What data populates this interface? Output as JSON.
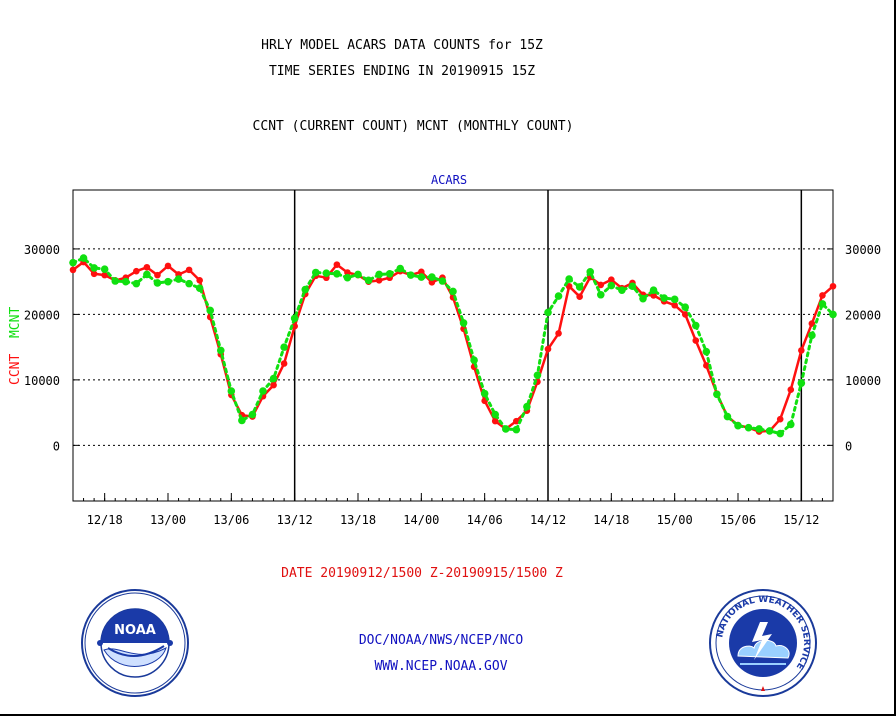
{
  "header": {
    "title_line1": "HRLY MODEL ACARS DATA COUNTS for 15Z",
    "title_line2": "TIME SERIES ENDING IN 20190915 15Z",
    "subtitle": "CCNT (CURRENT COUNT) MCNT (MONTHLY COUNT)"
  },
  "footer": {
    "date_range": "DATE 20190912/1500 Z-20190915/1500 Z",
    "org": "DOC/NOAA/NWS/NCEP/NCO",
    "url": "WWW.NCEP.NOAA.GOV",
    "noaa_logo_text": "NOAA",
    "nws_logo_text": "NATIONAL WEATHER SERVICE"
  },
  "colors": {
    "ccnt": "#ff1010",
    "mcnt": "#10e010",
    "text_blue": "#1010c0",
    "text_red": "#e01010"
  },
  "chart_data": {
    "type": "line",
    "title": "ACARS",
    "ylabel_ccnt": "CCNT",
    "ylabel_mcnt": "MCNT",
    "x_hours": [
      0,
      1,
      2,
      3,
      4,
      5,
      6,
      7,
      8,
      9,
      10,
      11,
      12,
      13,
      14,
      15,
      16,
      17,
      18,
      19,
      20,
      21,
      22,
      23,
      24,
      25,
      26,
      27,
      28,
      29,
      30,
      31,
      32,
      33,
      34,
      35,
      36,
      37,
      38,
      39,
      40,
      41,
      42,
      43,
      44,
      45,
      46,
      47,
      48,
      49,
      50,
      51,
      52,
      53,
      54,
      55,
      56,
      57,
      58,
      59,
      60,
      61,
      62,
      63,
      64,
      65,
      66,
      67,
      68,
      69,
      70,
      71,
      72
    ],
    "x_start": "20190912/1500 Z",
    "xlim_hours": [
      0,
      72
    ],
    "xticks": [
      {
        "h": 3,
        "label": "12/18"
      },
      {
        "h": 9,
        "label": "13/00"
      },
      {
        "h": 15,
        "label": "13/06"
      },
      {
        "h": 21,
        "label": "13/12"
      },
      {
        "h": 27,
        "label": "13/18"
      },
      {
        "h": 33,
        "label": "14/00"
      },
      {
        "h": 39,
        "label": "14/06"
      },
      {
        "h": 45,
        "label": "14/12"
      },
      {
        "h": 51,
        "label": "14/18"
      },
      {
        "h": 57,
        "label": "15/00"
      },
      {
        "h": 63,
        "label": "15/06"
      },
      {
        "h": 69,
        "label": "15/12"
      }
    ],
    "day_boundaries_hours": [
      21,
      45,
      69
    ],
    "ylim": [
      -8500,
      39000
    ],
    "yticks": [
      0,
      10000,
      20000,
      30000
    ],
    "ytick_labels": [
      "0",
      "10000",
      "20000",
      "30000"
    ],
    "grid": "horizontal dotted",
    "series": [
      {
        "name": "CCNT",
        "style": "solid",
        "values": [
          26800,
          28000,
          26200,
          26000,
          25200,
          25600,
          26600,
          27200,
          26000,
          27400,
          26100,
          26800,
          25200,
          19600,
          13900,
          7700,
          4600,
          4400,
          7500,
          9200,
          12500,
          18200,
          23100,
          25900,
          25600,
          27600,
          26400,
          26000,
          25000,
          25200,
          25600,
          26600,
          26000,
          26500,
          24900,
          25600,
          22600,
          17800,
          12000,
          6800,
          3700,
          2500,
          3700,
          5300,
          9700,
          14700,
          17100,
          24300,
          22700,
          25700,
          24500,
          25300,
          24000,
          24800,
          23000,
          22900,
          22000,
          21400,
          20000,
          16000,
          12200,
          7900,
          4400,
          3100,
          2700,
          2100,
          2200,
          4000,
          8500,
          14500,
          18600,
          22900,
          24300
        ]
      },
      {
        "name": "MCNT",
        "style": "dotted",
        "values": [
          27900,
          28600,
          27100,
          26900,
          25100,
          25000,
          24700,
          26100,
          24800,
          25000,
          25400,
          24700,
          24000,
          20600,
          14500,
          8300,
          3800,
          4700,
          8300,
          10200,
          15000,
          19400,
          23800,
          26400,
          26300,
          26200,
          25600,
          26100,
          25200,
          26100,
          26200,
          27000,
          26000,
          25700,
          25700,
          25100,
          23500,
          18700,
          13000,
          7900,
          4700,
          2500,
          2400,
          5900,
          10700,
          20300,
          22800,
          25400,
          24200,
          26500,
          23000,
          24400,
          23700,
          24300,
          22400,
          23700,
          22500,
          22300,
          21100,
          18300,
          14300,
          7800,
          4400,
          3000,
          2700,
          2500,
          2200,
          1800,
          3200,
          9500,
          16800,
          21600,
          20000
        ]
      }
    ]
  }
}
